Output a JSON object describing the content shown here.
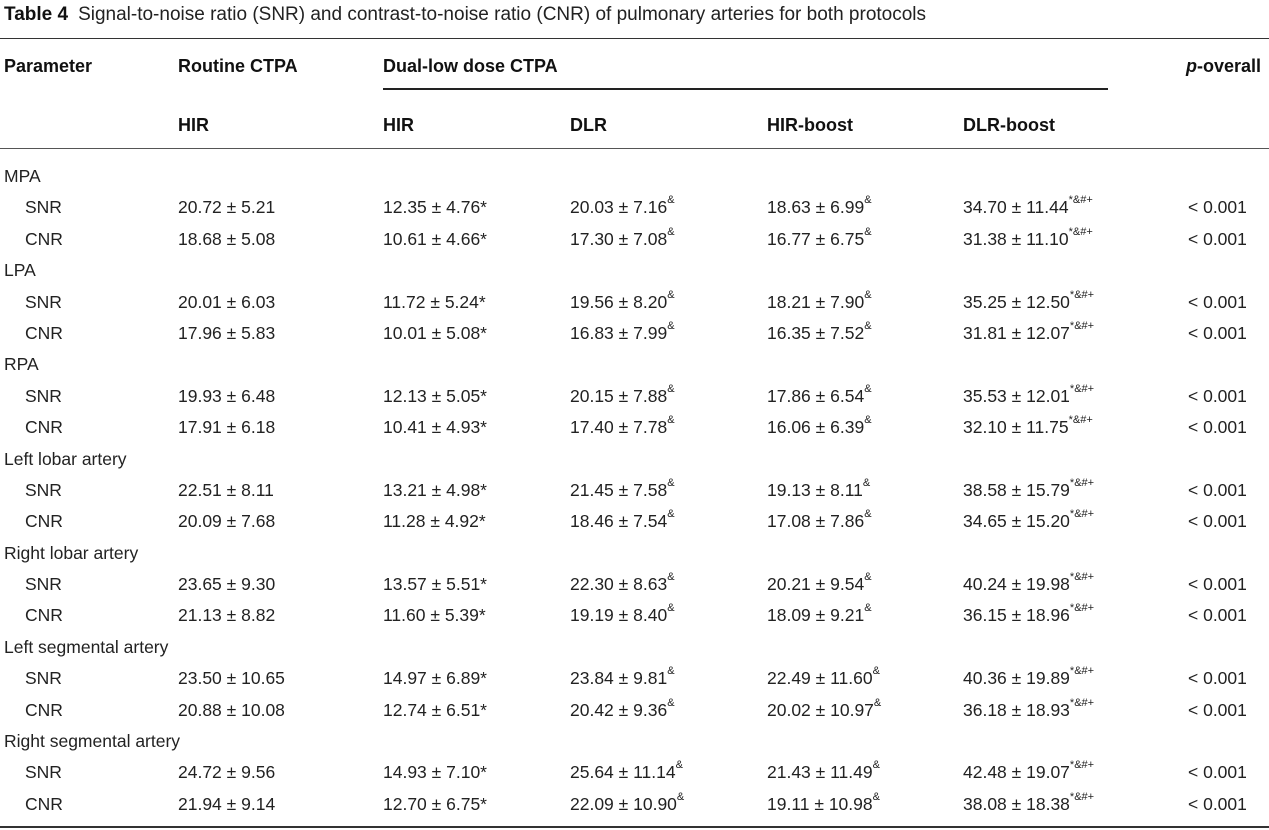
{
  "caption": {
    "label": "Table 4",
    "text": "Signal-to-noise ratio (SNR) and contrast-to-noise ratio (CNR) of pulmonary arteries for both protocols"
  },
  "headers": {
    "parameter": "Parameter",
    "routine": "Routine CTPA",
    "dual": "Dual-low dose CTPA",
    "p_prefix": "p",
    "p_suffix": "-overall",
    "sub": [
      "HIR",
      "HIR",
      "DLR",
      "HIR-boost",
      "DLR-boost"
    ]
  },
  "groups": [
    {
      "name": "MPA",
      "rows": [
        {
          "param": "SNR",
          "values": [
            "20.72 ± 5.21",
            "12.35 ± 4.76*",
            "20.03 ± 7.16",
            "18.63 ± 6.99",
            "34.70 ± 11.44"
          ],
          "marks": [
            "",
            "",
            "&",
            "&",
            "*&#+"
          ],
          "p": "< 0.001"
        },
        {
          "param": "CNR",
          "values": [
            "18.68 ± 5.08",
            "10.61 ± 4.66*",
            "17.30 ± 7.08",
            "16.77 ± 6.75",
            "31.38 ± 11.10"
          ],
          "marks": [
            "",
            "",
            "&",
            "&",
            "*&#+"
          ],
          "p": "< 0.001"
        }
      ]
    },
    {
      "name": "LPA",
      "rows": [
        {
          "param": "SNR",
          "values": [
            "20.01 ± 6.03",
            "11.72 ± 5.24*",
            "19.56 ± 8.20",
            "18.21 ± 7.90",
            "35.25 ± 12.50"
          ],
          "marks": [
            "",
            "",
            "&",
            "&",
            "*&#+"
          ],
          "p": "< 0.001"
        },
        {
          "param": "CNR",
          "values": [
            "17.96 ± 5.83",
            "10.01 ± 5.08*",
            "16.83 ± 7.99",
            "16.35 ± 7.52",
            "31.81 ± 12.07"
          ],
          "marks": [
            "",
            "",
            "&",
            "&",
            "*&#+"
          ],
          "p": "< 0.001"
        }
      ]
    },
    {
      "name": "RPA",
      "rows": [
        {
          "param": "SNR",
          "values": [
            "19.93 ± 6.48",
            "12.13 ± 5.05*",
            "20.15 ± 7.88",
            "17.86 ± 6.54",
            "35.53 ± 12.01"
          ],
          "marks": [
            "",
            "",
            "&",
            "&",
            "*&#+"
          ],
          "p": "< 0.001"
        },
        {
          "param": "CNR",
          "values": [
            "17.91 ± 6.18",
            "10.41 ± 4.93*",
            "17.40 ± 7.78",
            "16.06 ± 6.39",
            "32.10 ± 11.75"
          ],
          "marks": [
            "",
            "",
            "&",
            "&",
            "*&#+"
          ],
          "p": "< 0.001"
        }
      ]
    },
    {
      "name": "Left lobar artery",
      "rows": [
        {
          "param": "SNR",
          "values": [
            "22.51 ± 8.11",
            "13.21 ± 4.98*",
            "21.45 ± 7.58",
            "19.13 ± 8.11",
            "38.58 ± 15.79"
          ],
          "marks": [
            "",
            "",
            "&",
            "&",
            "*&#+"
          ],
          "p": "< 0.001"
        },
        {
          "param": "CNR",
          "values": [
            "20.09 ± 7.68",
            "11.28 ± 4.92*",
            "18.46 ± 7.54",
            "17.08 ± 7.86",
            "34.65 ± 15.20"
          ],
          "marks": [
            "",
            "",
            "&",
            "&",
            "*&#+"
          ],
          "p": "< 0.001"
        }
      ]
    },
    {
      "name": "Right lobar artery",
      "rows": [
        {
          "param": "SNR",
          "values": [
            "23.65 ± 9.30",
            "13.57 ± 5.51*",
            "22.30 ± 8.63",
            "20.21 ± 9.54",
            "40.24 ± 19.98"
          ],
          "marks": [
            "",
            "",
            "&",
            "&",
            "*&#+"
          ],
          "p": "< 0.001"
        },
        {
          "param": "CNR",
          "values": [
            "21.13 ± 8.82",
            "11.60 ± 5.39*",
            "19.19 ± 8.40",
            "18.09 ± 9.21",
            "36.15 ± 18.96"
          ],
          "marks": [
            "",
            "",
            "&",
            "&",
            "*&#+"
          ],
          "p": "< 0.001"
        }
      ]
    },
    {
      "name": "Left segmental artery",
      "rows": [
        {
          "param": "SNR",
          "values": [
            "23.50 ± 10.65",
            "14.97 ± 6.89*",
            "23.84 ± 9.81",
            "22.49 ± 11.60",
            "40.36 ± 19.89"
          ],
          "marks": [
            "",
            "",
            "&",
            "&",
            "*&#+"
          ],
          "p": "< 0.001"
        },
        {
          "param": "CNR",
          "values": [
            "20.88 ± 10.08",
            "12.74 ± 6.51*",
            "20.42 ± 9.36",
            "20.02 ± 10.97",
            "36.18 ± 18.93"
          ],
          "marks": [
            "",
            "",
            "&",
            "&",
            "*&#+"
          ],
          "p": "< 0.001"
        }
      ]
    },
    {
      "name": "Right segmental artery",
      "rows": [
        {
          "param": "SNR",
          "values": [
            "24.72 ± 9.56",
            "14.93 ± 7.10*",
            "25.64 ± 11.14",
            "21.43 ± 11.49",
            "42.48 ± 19.07"
          ],
          "marks": [
            "",
            "",
            "&",
            "&",
            "*&#+"
          ],
          "p": "< 0.001"
        },
        {
          "param": "CNR",
          "values": [
            "21.94 ± 9.14",
            "12.70 ± 6.75*",
            "22.09 ± 10.90",
            "19.11 ± 10.98",
            "38.08 ± 18.38"
          ],
          "marks": [
            "",
            "",
            "&",
            "&",
            "*&#+"
          ],
          "p": "< 0.001"
        }
      ]
    }
  ]
}
